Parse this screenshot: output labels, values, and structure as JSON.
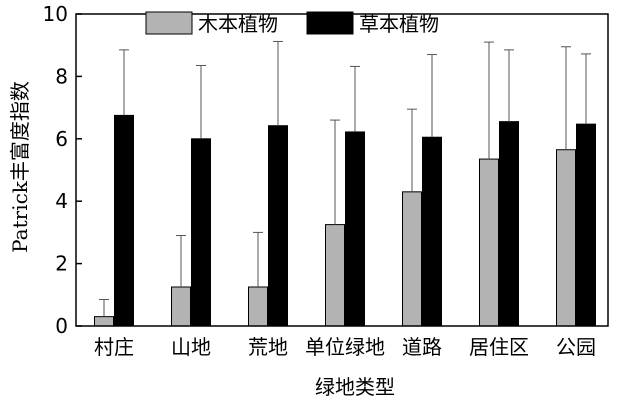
{
  "chart_data": {
    "type": "bar",
    "xlabel": "绿地类型",
    "ylabel": "Patrick丰富度指数",
    "ylim": [
      0,
      10
    ],
    "yticks": [
      0,
      2,
      4,
      6,
      8,
      10
    ],
    "categories": [
      "村庄",
      "山地",
      "荒地",
      "单位绿地",
      "道路",
      "居住区",
      "公园"
    ],
    "series": [
      {
        "name": "木本植物",
        "color": "#b3b3b3",
        "values": [
          0.3,
          1.25,
          1.25,
          3.25,
          4.3,
          5.35,
          5.65
        ],
        "errors": [
          0.55,
          1.65,
          1.75,
          3.35,
          2.65,
          3.75,
          3.3
        ]
      },
      {
        "name": "草本植物",
        "color": "#000000",
        "values": [
          6.75,
          6.0,
          6.42,
          6.22,
          6.05,
          6.55,
          6.47
        ],
        "errors": [
          2.1,
          2.35,
          2.7,
          2.1,
          2.65,
          2.3,
          2.25
        ]
      }
    ],
    "legend_position": "top-center",
    "grid": false
  }
}
